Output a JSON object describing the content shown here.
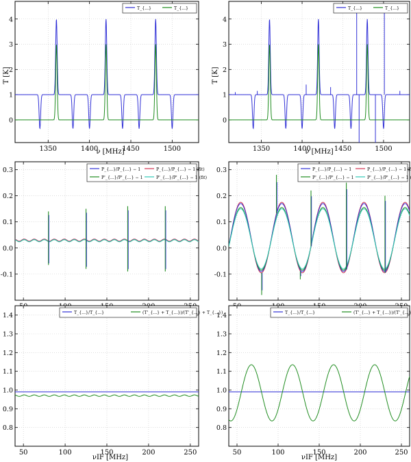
{
  "colors": {
    "blue": "#2f2fd6",
    "green": "#1f8c1f",
    "red": "#d2324f",
    "cyan": "#2ec7b8",
    "grid": "#c8c8c8"
  },
  "labels": {
    "T_axis": "T [K]",
    "nu_axis": "ν [MHz]",
    "nuIF_axis": "νIF [MHz]"
  },
  "chart_data": [
    {
      "id": "top-left",
      "type": "line",
      "xlabel": "ν [MHz]",
      "ylabel": "T [K]",
      "xlim": [
        1310,
        1532
      ],
      "ylim": [
        -0.9,
        4.7
      ],
      "xticks": [
        1350,
        1400,
        1450,
        1500
      ],
      "yticks": [
        0,
        1,
        2,
        3,
        4
      ],
      "legend": [
        "T_{...}",
        "T_{...}"
      ],
      "legend_position": "top-right",
      "series": [
        {
          "color": "blue",
          "peaks": [
            1360,
            1420,
            1480
          ],
          "peak_value": 4.0,
          "dips": [
            1340,
            1380,
            1400,
            1440,
            1460,
            1500
          ],
          "dip_value": -0.35,
          "baseline": 1.0
        },
        {
          "color": "green",
          "peaks": [
            1360,
            1420,
            1480
          ],
          "peak_value": 3.0,
          "dips": [
            1340,
            1380,
            1400,
            1440,
            1460,
            1500
          ],
          "dip_value": 0.0,
          "baseline": 0.0
        }
      ]
    },
    {
      "id": "top-right",
      "type": "line",
      "xlabel": "ν [MHz]",
      "ylabel": "T [K]",
      "xlim": [
        1310,
        1532
      ],
      "ylim": [
        -0.9,
        4.7
      ],
      "xticks": [
        1350,
        1400,
        1450,
        1500
      ],
      "yticks": [
        0,
        1,
        2,
        3,
        4
      ],
      "legend": [
        "T_{...}",
        "T_{...}"
      ],
      "legend_position": "top-right",
      "series": [
        {
          "color": "blue",
          "peaks": [
            1360,
            1420,
            1480
          ],
          "peak_value": 4.0,
          "dips": [
            1340,
            1380,
            1400,
            1440,
            1460,
            1500
          ],
          "dip_value": -0.35,
          "baseline": 1.0,
          "spikes": [
            [
              1318,
              1.1
            ],
            [
              1345,
              1.15
            ],
            [
              1405,
              1.4
            ],
            [
              1435,
              1.3
            ],
            [
              1467,
              4.6
            ],
            [
              1470,
              -0.9
            ],
            [
              1490,
              -0.9
            ],
            [
              1501,
              4.6
            ],
            [
              1520,
              1.15
            ]
          ]
        },
        {
          "color": "green",
          "peaks": [
            1360,
            1420,
            1480
          ],
          "peak_value": 3.0,
          "dips": [
            1340,
            1380,
            1400,
            1440,
            1460,
            1500
          ],
          "dip_value": 0.0,
          "baseline": 0.0
        }
      ]
    },
    {
      "id": "mid-left",
      "type": "line",
      "xlim": [
        40,
        260
      ],
      "ylim": [
        -0.2,
        0.33
      ],
      "xticks": [
        50,
        100,
        150,
        200,
        250
      ],
      "yticks": [
        -0.1,
        0.0,
        0.1,
        0.2,
        0.3
      ],
      "legend": [
        "P_{...}/P_{...} − 1",
        "P_{...}/P_{...} − 1 (fit)",
        "P'_{...}/P'_{...} − 1",
        "P'_{...}/P'_{...} − 1 (fit)"
      ],
      "legend_position": "top-right",
      "series": [
        {
          "color": "blue",
          "baseline": 0.03,
          "amplitude": 0.004,
          "period": 12
        },
        {
          "color": "red",
          "baseline": 0.03,
          "amplitude": 0.004,
          "period": 12
        },
        {
          "color": "green",
          "baseline": 0.028,
          "amplitude": 0.004,
          "period": 12
        },
        {
          "color": "cyan",
          "baseline": 0.028,
          "amplitude": 0.004,
          "period": 12
        }
      ],
      "spikes": [
        [
          80,
          0.14
        ],
        [
          80,
          -0.065
        ],
        [
          125,
          0.15
        ],
        [
          125,
          -0.08
        ],
        [
          175,
          0.16
        ],
        [
          175,
          -0.09
        ],
        [
          220,
          0.16
        ],
        [
          220,
          -0.09
        ]
      ]
    },
    {
      "id": "mid-right",
      "type": "line",
      "xlim": [
        40,
        260
      ],
      "ylim": [
        -0.2,
        0.33
      ],
      "xticks": [
        50,
        100,
        150,
        200,
        250
      ],
      "yticks": [
        -0.1,
        0.0,
        0.1,
        0.2,
        0.3
      ],
      "legend": [
        "P_{...}/P_{...} − 1",
        "P_{...}/P_{...} − 1 (fit)",
        "P'_{...}/P'_{...} − 1",
        "P'_{...}/P'_{...} − 1 (fit)"
      ],
      "legend_position": "top-right",
      "series": [
        {
          "color": "red",
          "center": 0.04,
          "amplitude": 0.135,
          "period": 50,
          "phase_x": 42
        },
        {
          "color": "blue",
          "center": 0.04,
          "amplitude": 0.13,
          "period": 50,
          "phase_x": 42
        },
        {
          "color": "green",
          "center": 0.035,
          "amplitude": 0.12,
          "period": 50,
          "phase_x": 42
        },
        {
          "color": "cyan",
          "center": 0.035,
          "amplitude": 0.115,
          "period": 50,
          "phase_x": 42
        }
      ],
      "spikes": [
        [
          80,
          -0.18
        ],
        [
          98,
          0.28
        ],
        [
          127,
          -0.12
        ],
        [
          140,
          0.22
        ],
        [
          183,
          0.25
        ],
        [
          230,
          0.2
        ]
      ]
    },
    {
      "id": "bottom-left",
      "type": "line",
      "xlabel": "νIF [MHz]",
      "xlim": [
        40,
        260
      ],
      "ylim": [
        0.7,
        1.45
      ],
      "xticks": [
        50,
        100,
        150,
        200,
        250
      ],
      "yticks": [
        0.8,
        0.9,
        1.0,
        1.1,
        1.2,
        1.3,
        1.4
      ],
      "legend": [
        "T_{...}/T_{...}",
        "(T'_{...} + T_{...})/(T'_{...} + T_{...})"
      ],
      "legend_position": "top-right",
      "series": [
        {
          "color": "blue",
          "baseline": 0.99,
          "amplitude": 0.0
        },
        {
          "color": "green",
          "baseline": 0.97,
          "amplitude": 0.004,
          "period": 12
        }
      ]
    },
    {
      "id": "bottom-right",
      "type": "line",
      "xlabel": "νIF [MHz]",
      "xlim": [
        40,
        260
      ],
      "ylim": [
        0.7,
        1.45
      ],
      "xticks": [
        50,
        100,
        150,
        200,
        250
      ],
      "yticks": [
        0.8,
        0.9,
        1.0,
        1.1,
        1.2,
        1.3,
        1.4
      ],
      "legend": [
        "T_{...}/T_{...}",
        "(T'_{...} + T_{...})/(T'_{...} + T_{...})"
      ],
      "legend_position": "top-right",
      "series": [
        {
          "color": "blue",
          "baseline": 0.99,
          "amplitude": 0.0
        },
        {
          "color": "green",
          "center": 0.985,
          "amplitude": 0.15,
          "period": 50,
          "phase_x": 55
        }
      ]
    }
  ]
}
